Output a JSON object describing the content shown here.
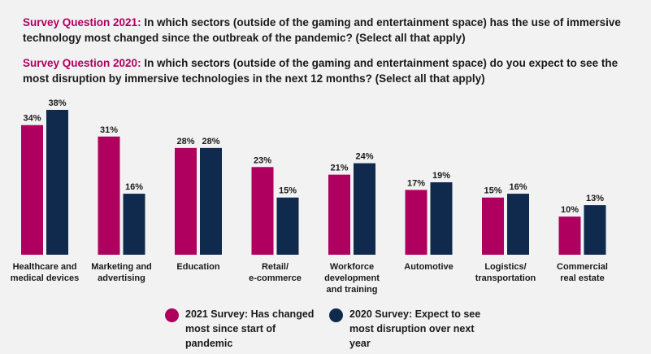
{
  "questions": {
    "q2021_label": "Survey Question 2021:",
    "q2021_text": " In which sectors (outside of the gaming and entertainment space) has the use of immersive technology most changed since the outbreak of the pandemic? (Select all that apply)",
    "q2020_label": "Survey Question 2020:",
    "q2020_text": " In which sectors (outside of the gaming and entertainment space) do you expect to see the most disruption by immersive technologies in the next 12 months? (Select all that apply)"
  },
  "colors": {
    "series2021": "#b0005f",
    "series2020": "#0f2a4d",
    "accent": "#b0005f"
  },
  "legend": [
    {
      "label": "2021 Survey: Has changed most since start of pandemic",
      "color": "#b0005f"
    },
    {
      "label": "2020 Survey: Expect to see most disruption over next year",
      "color": "#0f2a4d"
    }
  ],
  "chart_data": {
    "type": "bar",
    "categories": [
      [
        "Healthcare and",
        "medical devices"
      ],
      [
        "Marketing and",
        "advertising"
      ],
      [
        "Education"
      ],
      [
        "Retail/",
        "e-commerce"
      ],
      [
        "Workforce",
        "development",
        "and training"
      ],
      [
        "Automotive"
      ],
      [
        "Logistics/",
        "transportation"
      ],
      [
        "Commercial",
        "real estate"
      ]
    ],
    "series": [
      {
        "name": "2021 Survey: Has changed most since start of pandemic",
        "values": [
          34,
          31,
          28,
          23,
          21,
          17,
          15,
          10
        ],
        "color": "#b0005f"
      },
      {
        "name": "2020 Survey: Expect to see most disruption over next year",
        "values": [
          38,
          16,
          28,
          15,
          24,
          19,
          16,
          13
        ],
        "color": "#0f2a4d"
      }
    ],
    "value_suffix": "%",
    "ylim": [
      0,
      38
    ],
    "grid": false
  }
}
